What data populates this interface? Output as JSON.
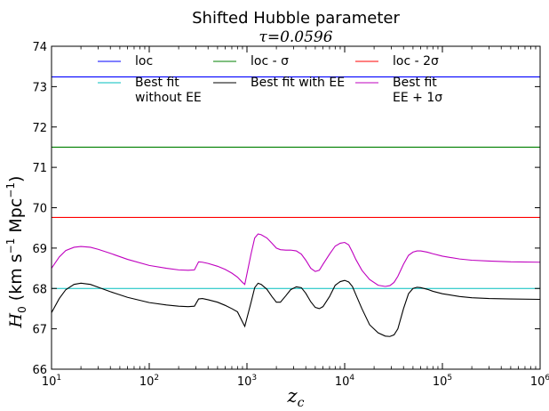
{
  "chart_data": {
    "type": "line",
    "title": "Shifted Hubble parameter",
    "subtitle": "τ=0.0596",
    "xlabel": "z",
    "xlabel_sub": "c",
    "ylabel_parts": {
      "symbol": "H",
      "symbol_sub": "0",
      "open": "(km s",
      "exp1": "−1",
      "mid": " Mpc",
      "exp2": "−1",
      "close": ")"
    },
    "xscale": "log",
    "xlim": [
      10,
      1000000
    ],
    "ylim": [
      66,
      74
    ],
    "x_ticks": [
      {
        "value": 10,
        "base": "10",
        "exp": "1"
      },
      {
        "value": 100,
        "base": "10",
        "exp": "2"
      },
      {
        "value": 1000,
        "base": "10",
        "exp": "3"
      },
      {
        "value": 10000,
        "base": "10",
        "exp": "4"
      },
      {
        "value": 100000,
        "base": "10",
        "exp": "5"
      },
      {
        "value": 1000000,
        "base": "10",
        "exp": "6"
      }
    ],
    "y_ticks": [
      {
        "value": 66,
        "label": "66"
      },
      {
        "value": 67,
        "label": "67"
      },
      {
        "value": 68,
        "label": "68"
      },
      {
        "value": 69,
        "label": "69"
      },
      {
        "value": 70,
        "label": "70"
      },
      {
        "value": 71,
        "label": "71"
      },
      {
        "value": 72,
        "label": "72"
      },
      {
        "value": 73,
        "label": "73"
      },
      {
        "value": 74,
        "label": "74"
      }
    ],
    "grid": false,
    "legend_placement": "top",
    "legend_columns": 3,
    "series": [
      {
        "name": "loc",
        "color": "#0000ff",
        "y": 73.24
      },
      {
        "name": "loc - σ",
        "color": "#008000",
        "y": 71.5
      },
      {
        "name": "loc - 2σ",
        "color": "#ff0000",
        "y": 69.76
      },
      {
        "name": "Best fit without EE",
        "color": "#00bfbf",
        "y": 68.0
      },
      {
        "name": "Best fit with EE",
        "color": "#000000",
        "x": [
          10,
          12,
          14,
          17,
          20,
          25,
          30,
          40,
          60,
          100,
          150,
          200,
          250,
          290,
          320,
          350,
          400,
          500,
          600,
          700,
          800,
          900,
          950,
          1100,
          1200,
          1300,
          1400,
          1600,
          1800,
          2000,
          2200,
          2500,
          2800,
          3200,
          3600,
          4000,
          4500,
          5000,
          5500,
          6000,
          7000,
          8000,
          9000,
          10000,
          11000,
          12000,
          13000,
          15000,
          18000,
          22000,
          26000,
          29000,
          32000,
          35000,
          40000,
          45000,
          50000,
          55000,
          60000,
          70000,
          80000,
          100000,
          150000,
          200000,
          300000,
          500000,
          1000000
        ],
        "y": [
          67.4,
          67.75,
          67.97,
          68.1,
          68.13,
          68.1,
          68.03,
          67.92,
          67.78,
          67.65,
          67.59,
          67.56,
          67.55,
          67.56,
          67.74,
          67.75,
          67.72,
          67.66,
          67.58,
          67.5,
          67.42,
          67.17,
          67.06,
          67.65,
          68.02,
          68.13,
          68.1,
          67.98,
          67.8,
          67.66,
          67.66,
          67.82,
          67.97,
          68.04,
          68.02,
          67.88,
          67.67,
          67.53,
          67.5,
          67.55,
          67.8,
          68.08,
          68.17,
          68.2,
          68.16,
          68.05,
          67.85,
          67.5,
          67.1,
          66.9,
          66.82,
          66.81,
          66.85,
          67.0,
          67.5,
          67.87,
          68.0,
          68.03,
          68.02,
          67.98,
          67.93,
          67.87,
          67.8,
          67.77,
          67.75,
          67.74,
          67.73
        ]
      },
      {
        "name": "Best fit EE + 1σ",
        "color": "#bf00bf",
        "x": [
          10,
          12,
          14,
          17,
          20,
          25,
          30,
          40,
          60,
          100,
          150,
          200,
          250,
          290,
          320,
          350,
          400,
          500,
          600,
          700,
          800,
          900,
          950,
          1100,
          1200,
          1300,
          1400,
          1600,
          1800,
          2000,
          2200,
          2500,
          2800,
          3200,
          3600,
          4000,
          4500,
          5000,
          5500,
          6000,
          7000,
          8000,
          9000,
          10000,
          11000,
          12000,
          13000,
          15000,
          18000,
          22000,
          26000,
          29000,
          32000,
          35000,
          40000,
          45000,
          50000,
          55000,
          60000,
          70000,
          80000,
          100000,
          150000,
          200000,
          300000,
          500000,
          1000000
        ],
        "y": [
          68.5,
          68.78,
          68.94,
          69.02,
          69.04,
          69.02,
          68.97,
          68.87,
          68.72,
          68.57,
          68.5,
          68.46,
          68.45,
          68.46,
          68.66,
          68.65,
          68.62,
          68.55,
          68.47,
          68.38,
          68.28,
          68.15,
          68.1,
          68.85,
          69.25,
          69.35,
          69.33,
          69.25,
          69.12,
          69.0,
          68.96,
          68.95,
          68.95,
          68.93,
          68.85,
          68.7,
          68.5,
          68.42,
          68.45,
          68.6,
          68.85,
          69.05,
          69.12,
          69.14,
          69.08,
          68.9,
          68.72,
          68.45,
          68.22,
          68.08,
          68.05,
          68.07,
          68.15,
          68.3,
          68.6,
          68.82,
          68.9,
          68.93,
          68.93,
          68.9,
          68.86,
          68.8,
          68.73,
          68.7,
          68.68,
          68.66,
          68.65
        ]
      }
    ],
    "legend_entries": [
      {
        "lines": [
          "loc"
        ],
        "color": "#0000ff"
      },
      {
        "lines": [
          "loc - σ"
        ],
        "color": "#008000"
      },
      {
        "lines": [
          "loc - 2σ"
        ],
        "color": "#ff0000"
      },
      {
        "lines": [
          "Best fit",
          "without EE"
        ],
        "color": "#00bfbf"
      },
      {
        "lines": [
          "Best fit with EE"
        ],
        "color": "#000000"
      },
      {
        "lines": [
          "Best fit",
          " EE  + 1σ"
        ],
        "color": "#bf00bf"
      }
    ]
  }
}
